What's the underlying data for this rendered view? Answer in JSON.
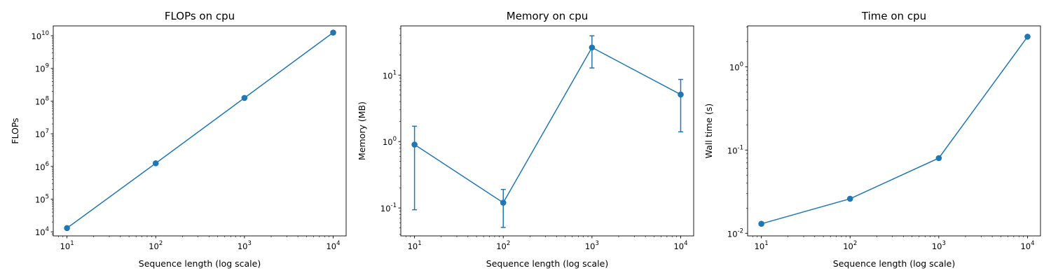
{
  "chart_data": [
    {
      "type": "line",
      "title": "FLOPs on cpu",
      "xlabel": "Sequence length (log scale)",
      "ylabel": "FLOPs",
      "xscale": "log",
      "yscale": "log",
      "xlim": [
        7,
        14000
      ],
      "ylim": [
        7500,
        20000000000
      ],
      "xticks": [
        10,
        100,
        1000,
        10000
      ],
      "yticks": [
        10000,
        100000,
        1000000,
        10000000,
        100000000,
        1000000000,
        10000000000
      ],
      "grid": false,
      "color": "#1f77b4",
      "series": [
        {
          "x": [
            10,
            100,
            1000,
            10000
          ],
          "y": [
            13000,
            1250000,
            125000000,
            12500000000
          ]
        }
      ]
    },
    {
      "type": "line",
      "title": "Memory on cpu",
      "xlabel": "Sequence length (log scale)",
      "ylabel": "Memory (MB)",
      "xscale": "log",
      "yscale": "log",
      "xlim": [
        7,
        14000
      ],
      "ylim": [
        0.038,
        55
      ],
      "xticks": [
        10,
        100,
        1000,
        10000
      ],
      "yticks": [
        0.1,
        1,
        10
      ],
      "grid": false,
      "color": "#1f77b4",
      "series": [
        {
          "x": [
            10,
            100,
            1000,
            10000
          ],
          "y": [
            0.9,
            0.12,
            26,
            5.1
          ],
          "err_low": [
            0.094,
            0.051,
            12.8,
            1.4
          ],
          "err_high": [
            1.7,
            0.19,
            39,
            8.6
          ]
        }
      ]
    },
    {
      "type": "line",
      "title": "Time on cpu",
      "xlabel": "Sequence length (log scale)",
      "ylabel": "Wall time (s)",
      "xscale": "log",
      "yscale": "log",
      "xlim": [
        7,
        14000
      ],
      "ylim": [
        0.0093,
        3.1
      ],
      "xticks": [
        10,
        100,
        1000,
        10000
      ],
      "yticks": [
        0.01,
        0.1,
        1
      ],
      "grid": false,
      "color": "#1f77b4",
      "series": [
        {
          "x": [
            10,
            100,
            1000,
            10000
          ],
          "y": [
            0.013,
            0.026,
            0.08,
            2.3
          ]
        }
      ]
    }
  ]
}
